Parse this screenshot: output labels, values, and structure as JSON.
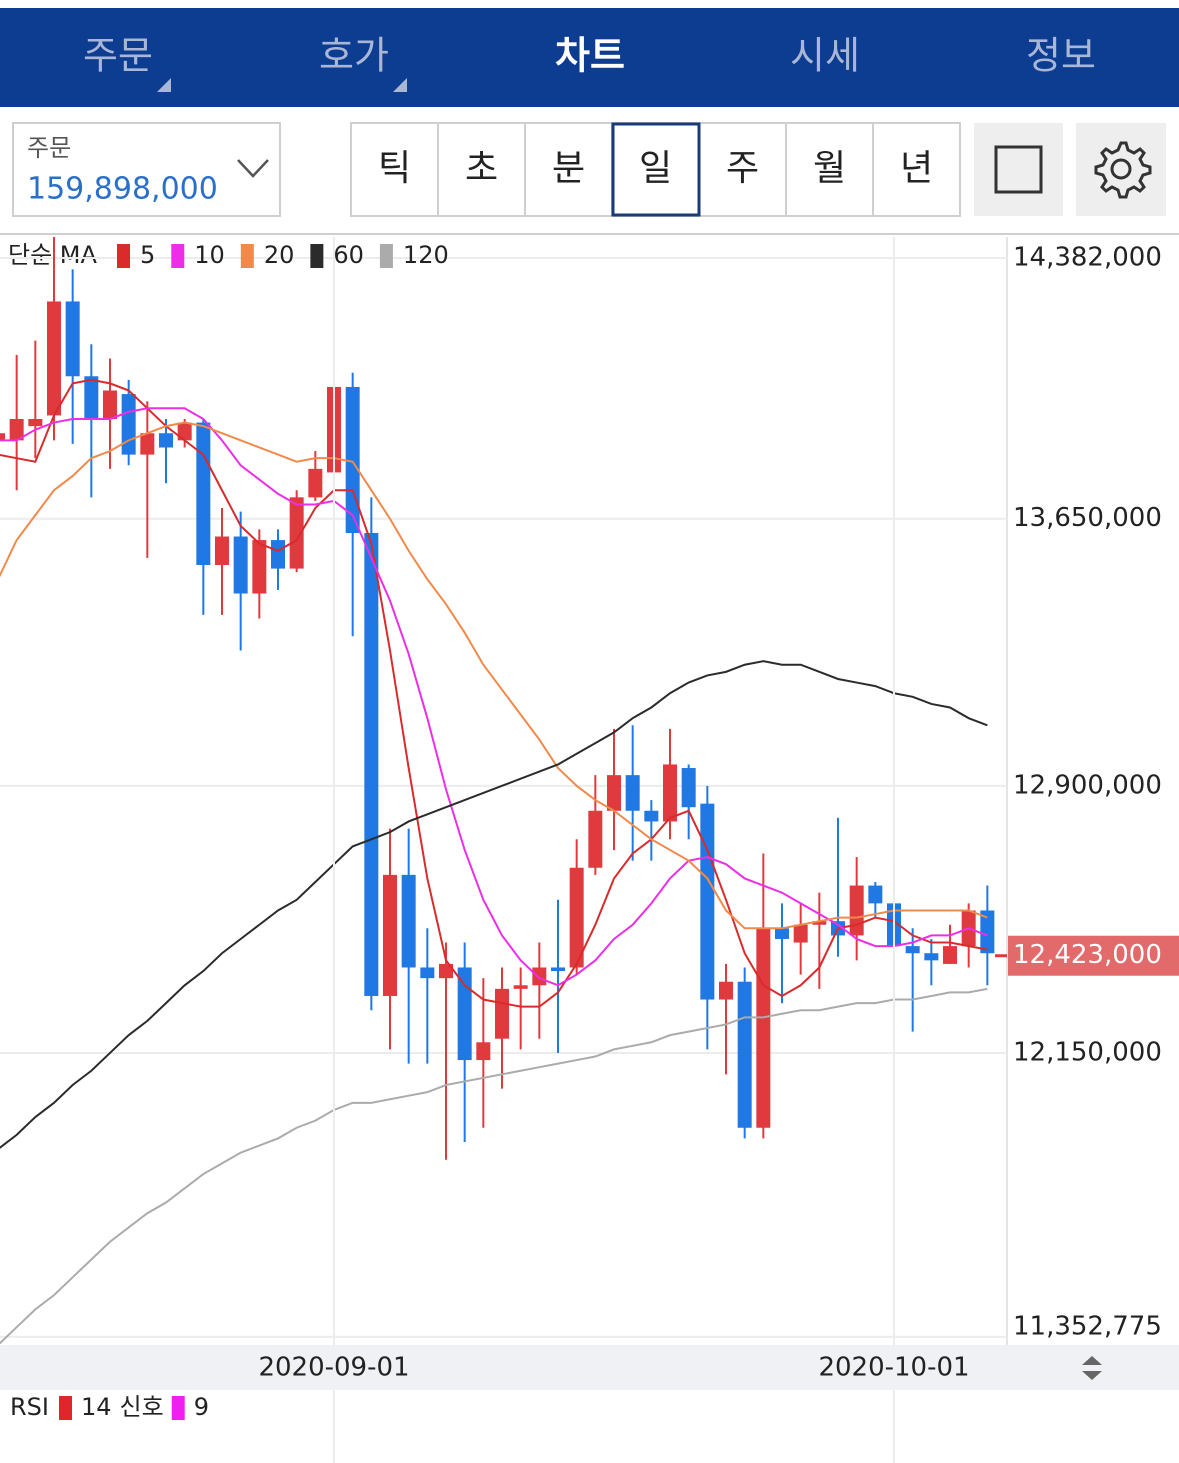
{
  "tabs": {
    "items": [
      "주문",
      "호가",
      "차트",
      "시세",
      "정보"
    ],
    "active": 2
  },
  "order": {
    "label": "주문",
    "value": "159,898,000"
  },
  "periods": {
    "items": [
      "틱",
      "초",
      "분",
      "일",
      "주",
      "월",
      "년"
    ],
    "active": 3
  },
  "chart_data": {
    "type": "candlestick",
    "indicator_label": "단순 MA",
    "up_color": "#e0393e",
    "down_color": "#1f78e3",
    "categories": [
      null,
      null,
      null,
      null,
      null,
      null,
      null,
      null,
      null,
      null,
      null,
      null,
      null,
      null,
      null,
      null,
      null,
      null,
      "2020-09-01",
      null,
      null,
      null,
      null,
      null,
      null,
      null,
      null,
      null,
      null,
      null,
      null,
      null,
      null,
      null,
      null,
      null,
      null,
      null,
      null,
      null,
      null,
      null,
      null,
      null,
      null,
      null,
      null,
      null,
      "2020-10-01",
      null,
      null,
      null,
      null,
      null
    ],
    "open": [
      13870000,
      13870000,
      13910000,
      13940000,
      14260000,
      14050000,
      13930000,
      14000000,
      13830000,
      13890000,
      13870000,
      13920000,
      13520000,
      13600000,
      13440000,
      13590000,
      13510000,
      13710000,
      13780000,
      14020000,
      13610000,
      12310000,
      12650000,
      12390000,
      12360000,
      12390000,
      12130000,
      12190000,
      12330000,
      12340000,
      12390000,
      12390000,
      12670000,
      12830000,
      12930000,
      12830000,
      12800000,
      12950000,
      12850000,
      12300000,
      12350000,
      11940000,
      12500000,
      12460000,
      12510000,
      12520000,
      12480000,
      12620000,
      12570000,
      12450000,
      12430000,
      12400000,
      12450000,
      12550000
    ],
    "high": [
      14040000,
      14110000,
      14150000,
      14480000,
      14350000,
      14140000,
      14100000,
      14040000,
      13980000,
      13930000,
      13930000,
      13930000,
      13680000,
      13670000,
      13620000,
      13620000,
      13730000,
      13840000,
      14150000,
      14060000,
      13710000,
      12780000,
      12780000,
      12500000,
      12460000,
      12460000,
      12360000,
      12390000,
      12390000,
      12460000,
      12580000,
      12750000,
      12930000,
      13060000,
      13070000,
      12860000,
      13060000,
      12960000,
      12900000,
      12400000,
      12390000,
      12710000,
      12570000,
      12570000,
      12600000,
      12810000,
      12700000,
      12630000,
      12670000,
      12500000,
      12470000,
      12510000,
      12570000,
      12620000
    ],
    "low": [
      13760000,
      13730000,
      13820000,
      13870000,
      13860000,
      13710000,
      13790000,
      13800000,
      13540000,
      13750000,
      13850000,
      13380000,
      13380000,
      13280000,
      13370000,
      13450000,
      13500000,
      13700000,
      13650000,
      13320000,
      12270000,
      12160000,
      12120000,
      12120000,
      11850000,
      11900000,
      11940000,
      12050000,
      12160000,
      12190000,
      12150000,
      12370000,
      12650000,
      12720000,
      12690000,
      12690000,
      12750000,
      12750000,
      12160000,
      12090000,
      11910000,
      11910000,
      12290000,
      12370000,
      12330000,
      12420000,
      12410000,
      12530000,
      12340000,
      12210000,
      12340000,
      12400000,
      12390000,
      12340000
    ],
    "close": [
      13890000,
      13930000,
      13930000,
      14260000,
      14050000,
      13930000,
      14010000,
      13830000,
      13890000,
      13850000,
      13920000,
      13520000,
      13600000,
      13440000,
      13590000,
      13510000,
      13710000,
      13790000,
      14020000,
      13610000,
      12310000,
      12650000,
      12390000,
      12360000,
      12400000,
      12130000,
      12180000,
      12330000,
      12340000,
      12390000,
      12380000,
      12670000,
      12830000,
      12930000,
      12830000,
      12800000,
      12960000,
      12840000,
      12300000,
      12350000,
      11940000,
      12500000,
      12470000,
      12510000,
      12520000,
      12480000,
      12620000,
      12570000,
      12450000,
      12430000,
      12410000,
      12450000,
      12550000,
      12430000
    ],
    "series": [
      {
        "name": "5",
        "color": "#d92b2b",
        "values": [
          13830000,
          13820000,
          13810000,
          13940000,
          14030000,
          14040000,
          14030000,
          14010000,
          13960000,
          13910000,
          13870000,
          13830000,
          13730000,
          13630000,
          13580000,
          13560000,
          13590000,
          13680000,
          13730000,
          13730000,
          13580000,
          13280000,
          12950000,
          12640000,
          12410000,
          12340000,
          12300000,
          12290000,
          12280000,
          12280000,
          12320000,
          12400000,
          12510000,
          12640000,
          12710000,
          12750000,
          12810000,
          12830000,
          12720000,
          12580000,
          12430000,
          12340000,
          12310000,
          12340000,
          12390000,
          12500000,
          12510000,
          12530000,
          12520000,
          12480000,
          12460000,
          12460000,
          12450000,
          12440000
        ]
      },
      {
        "name": "10",
        "color": "#ec2fe6",
        "values": [
          13870000,
          13870000,
          13900000,
          13920000,
          13930000,
          13930000,
          13930000,
          13950000,
          13960000,
          13960000,
          13960000,
          13930000,
          13870000,
          13800000,
          13760000,
          13720000,
          13690000,
          13690000,
          13700000,
          13660000,
          13540000,
          13420000,
          13270000,
          13090000,
          12890000,
          12720000,
          12580000,
          12480000,
          12410000,
          12360000,
          12340000,
          12370000,
          12410000,
          12470000,
          12510000,
          12570000,
          12640000,
          12690000,
          12700000,
          12680000,
          12640000,
          12620000,
          12600000,
          12570000,
          12540000,
          12510000,
          12470000,
          12450000,
          12450000,
          12460000,
          12480000,
          12480000,
          12500000,
          12480000
        ]
      },
      {
        "name": "20",
        "color": "#f08a4b",
        "values": [
          13480000,
          13590000,
          13660000,
          13730000,
          13770000,
          13820000,
          13840000,
          13870000,
          13890000,
          13910000,
          13920000,
          13910000,
          13890000,
          13870000,
          13850000,
          13830000,
          13810000,
          13820000,
          13820000,
          13810000,
          13730000,
          13650000,
          13560000,
          13480000,
          13410000,
          13330000,
          13240000,
          13170000,
          13100000,
          13030000,
          12950000,
          12900000,
          12860000,
          12830000,
          12790000,
          12750000,
          12720000,
          12690000,
          12640000,
          12550000,
          12500000,
          12500000,
          12500000,
          12510000,
          12520000,
          12530000,
          12530000,
          12540000,
          12550000,
          12550000,
          12550000,
          12550000,
          12550000,
          12530000
        ]
      },
      {
        "name": "60",
        "color": "#2b2b2b",
        "values": [
          11880000,
          11920000,
          11970000,
          12010000,
          12060000,
          12100000,
          12150000,
          12200000,
          12240000,
          12290000,
          12340000,
          12380000,
          12430000,
          12470000,
          12510000,
          12550000,
          12580000,
          12630000,
          12680000,
          12730000,
          12750000,
          12770000,
          12800000,
          12820000,
          12840000,
          12860000,
          12880000,
          12900000,
          12920000,
          12940000,
          12960000,
          12990000,
          13020000,
          13050000,
          13090000,
          13120000,
          13160000,
          13190000,
          13210000,
          13220000,
          13240000,
          13250000,
          13240000,
          13240000,
          13220000,
          13200000,
          13190000,
          13180000,
          13160000,
          13150000,
          13130000,
          13120000,
          13090000,
          13070000
        ]
      },
      {
        "name": "120",
        "color": "#ababab",
        "values": [
          11330000,
          11380000,
          11430000,
          11470000,
          11520000,
          11570000,
          11620000,
          11660000,
          11700000,
          11730000,
          11770000,
          11810000,
          11840000,
          11870000,
          11890000,
          11910000,
          11940000,
          11960000,
          11990000,
          12010000,
          12010000,
          12020000,
          12030000,
          12040000,
          12060000,
          12070000,
          12080000,
          12090000,
          12100000,
          12110000,
          12120000,
          12130000,
          12140000,
          12160000,
          12170000,
          12180000,
          12200000,
          12210000,
          12220000,
          12230000,
          12250000,
          12250000,
          12260000,
          12270000,
          12270000,
          12280000,
          12290000,
          12290000,
          12300000,
          12300000,
          12310000,
          12320000,
          12320000,
          12330000
        ]
      }
    ],
    "ylim": [
      11330000,
      14441000
    ],
    "yticks": [
      {
        "value": 14382000,
        "label": "14,382,000"
      },
      {
        "value": 13650000,
        "label": "13,650,000"
      },
      {
        "value": 12900000,
        "label": "12,900,000"
      },
      {
        "value": 12150000,
        "label": "12,150,000"
      },
      {
        "value": 11352775,
        "label": "11,352,775"
      }
    ],
    "last_price": {
      "value": 12423000,
      "label": "12,423,000"
    },
    "grid": true
  },
  "rsi": {
    "title": "RSI",
    "period": "14",
    "signal_label": "신호",
    "signal": "9",
    "color": "#e0262a",
    "signal_color": "#f01ff0"
  }
}
